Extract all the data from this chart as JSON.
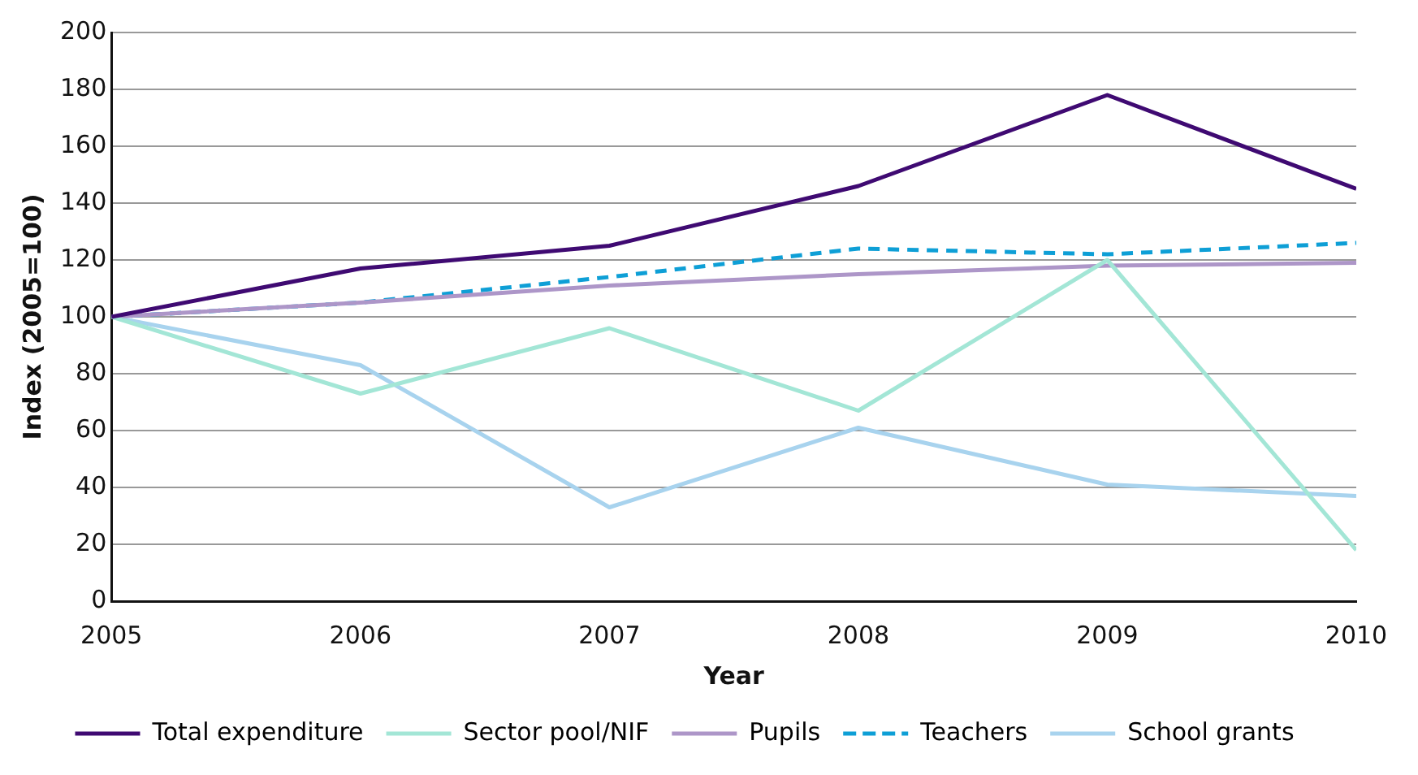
{
  "chart_data": {
    "type": "line",
    "xlabel": "Year",
    "ylabel": "Index (2005=100)",
    "x": [
      2005,
      2006,
      2007,
      2008,
      2009,
      2010
    ],
    "xlim": [
      2005,
      2010
    ],
    "xticks": [
      2005,
      2006,
      2007,
      2008,
      2009,
      2010
    ],
    "ylim": [
      0,
      200
    ],
    "yticks": [
      0,
      20,
      40,
      60,
      80,
      100,
      120,
      140,
      160,
      180,
      200
    ],
    "grid": "y",
    "legend": "bottom",
    "marker": "none",
    "series": [
      {
        "name": "Total expenditure",
        "color": "#3f0a72",
        "values": [
          100,
          117,
          125,
          146,
          178,
          145
        ]
      },
      {
        "name": "Sector pool/NIF",
        "color": "#a3e6d6",
        "values": [
          100,
          73,
          96,
          67,
          120,
          18
        ]
      },
      {
        "name": "Pupils",
        "color": "#ad96c8",
        "values": [
          100,
          105,
          111,
          115,
          118,
          119
        ]
      },
      {
        "name": "Teachers",
        "color": "#0e9fd6",
        "line_style": "dashed",
        "values": [
          100,
          105,
          114,
          124,
          122,
          126
        ]
      },
      {
        "name": "School grants",
        "color": "#a8d3ee",
        "values": [
          100,
          83,
          33,
          61,
          41,
          37
        ]
      }
    ]
  }
}
